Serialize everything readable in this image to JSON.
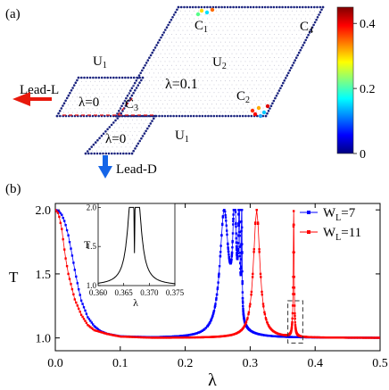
{
  "panel_a": {
    "label": "(a)",
    "lambda_center": "λ=0.1",
    "lambda_zero_upper": "λ=0",
    "lambda_zero_lower": "λ=0",
    "lead_left": "Lead-L",
    "lead_down": "Lead-D",
    "regions": {
      "u1_top": "U",
      "u1_top_sub": "1",
      "u2": "U",
      "u2_sub": "2",
      "u1_bottom": "U",
      "u1_bottom_sub": "1",
      "c1": "C",
      "c1_sub": "1",
      "c2": "C",
      "c2_sub": "2",
      "c3": "C",
      "c3_sub": "3",
      "c4": "C",
      "c4_sub": "4"
    },
    "colorbar": {
      "ticks": [
        "0.4",
        "0.2",
        "0"
      ],
      "tick_values": [
        0.4,
        0.2,
        0
      ],
      "range": [
        0,
        0.45
      ],
      "colors": [
        "#00007f",
        "#0000ff",
        "#0080ff",
        "#00ffff",
        "#80ff80",
        "#ffff00",
        "#ff8000",
        "#ff0000",
        "#7f0000"
      ]
    },
    "lattice_color": "#1a237e",
    "lead_arrow_color": "#e8190c",
    "down_arrow_color": "#1565e8"
  },
  "panel_b": {
    "label": "(b)",
    "legend": [
      {
        "name": "W",
        "sub": "L",
        "value": "=7",
        "color": "#0000ff"
      },
      {
        "name": "W",
        "sub": "L",
        "value": "=11",
        "color": "#ff0000"
      }
    ],
    "inset": {
      "xticks": [
        "0.360",
        "0.365",
        "0.370",
        "0.375"
      ],
      "yticks": [
        "1.0",
        "1.5",
        "2.0"
      ],
      "xlabel": "λ",
      "ylabel": "T"
    }
  },
  "chart_data": {
    "type": "scatter",
    "xlabel": "λ",
    "ylabel": "T",
    "xlim": [
      0.0,
      0.5
    ],
    "ylim": [
      0.9,
      2.05
    ],
    "xticks": [
      "0.0",
      "0.1",
      "0.2",
      "0.3",
      "0.4",
      "0.5"
    ],
    "yticks": [
      "1.0",
      "1.5",
      "2.0"
    ],
    "xtick_values": [
      0.0,
      0.1,
      0.2,
      0.3,
      0.4,
      0.5
    ],
    "ytick_values": [
      1.0,
      1.5,
      2.0
    ],
    "series": [
      {
        "name": "W_L=7",
        "color": "#0000ff",
        "background": [
          [
            0.0,
            2.0
          ],
          [
            0.005,
            1.99
          ],
          [
            0.01,
            1.96
          ],
          [
            0.015,
            1.9
          ],
          [
            0.02,
            1.8
          ],
          [
            0.025,
            1.67
          ],
          [
            0.03,
            1.53
          ],
          [
            0.035,
            1.4
          ],
          [
            0.04,
            1.29
          ],
          [
            0.05,
            1.16
          ],
          [
            0.06,
            1.09
          ],
          [
            0.07,
            1.05
          ],
          [
            0.08,
            1.03
          ],
          [
            0.1,
            1.01
          ],
          [
            0.15,
            1.0
          ],
          [
            0.2,
            1.0
          ]
        ],
        "peaks": [
          {
            "center": 0.26,
            "height": 0.97,
            "width": 0.008
          },
          {
            "center": 0.276,
            "height": 0.97,
            "width": 0.003
          },
          {
            "center": 0.283,
            "height": 0.97,
            "width": 0.0012
          },
          {
            "center": 0.287,
            "height": 0.98,
            "width": 0.0006
          }
        ],
        "sample_range": [
          0.0,
          0.5
        ],
        "step": 0.002
      },
      {
        "name": "W_L=11",
        "color": "#ff0000",
        "background": [
          [
            0.0,
            2.0
          ],
          [
            0.005,
            1.97
          ],
          [
            0.01,
            1.85
          ],
          [
            0.015,
            1.65
          ],
          [
            0.02,
            1.5
          ],
          [
            0.025,
            1.4
          ],
          [
            0.03,
            1.3
          ],
          [
            0.04,
            1.18
          ],
          [
            0.05,
            1.1
          ],
          [
            0.06,
            1.06
          ],
          [
            0.08,
            1.03
          ],
          [
            0.1,
            1.01
          ],
          [
            0.15,
            1.0
          ],
          [
            0.2,
            1.0
          ]
        ],
        "peaks": [
          {
            "center": 0.31,
            "height": 1.0,
            "width": 0.006
          },
          {
            "center": 0.367,
            "height": 0.98,
            "width": 0.0008
          }
        ],
        "sample_range": [
          0.0,
          0.5
        ],
        "step": 0.002
      }
    ],
    "inset_series": {
      "color": "#000000",
      "xlim": [
        0.36,
        0.375
      ],
      "ylim": [
        1.0,
        2.05
      ],
      "peaks": [
        {
          "center": 0.3665,
          "height": 0.95,
          "width": 0.0009
        },
        {
          "center": 0.3677,
          "height": 0.95,
          "width": 0.0009
        }
      ]
    },
    "dashed_box": {
      "x": [
        0.358,
        0.381
      ],
      "y": [
        0.96,
        1.29
      ]
    }
  }
}
